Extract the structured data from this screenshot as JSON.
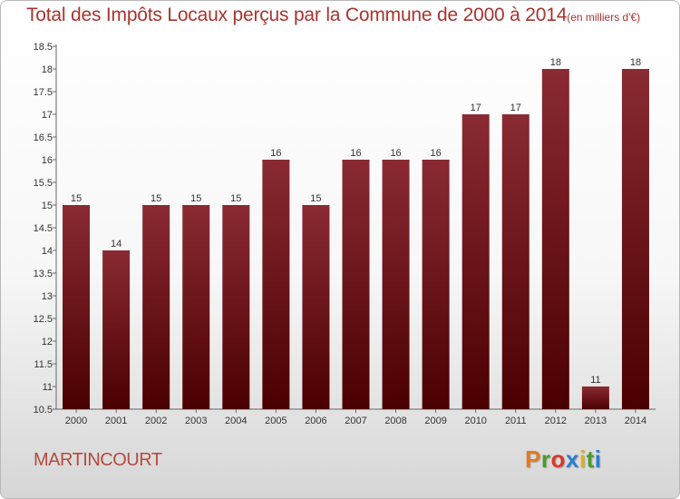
{
  "header": {
    "title": "Total des Impôts Locaux perçus par la Commune de 2000 à 2014",
    "unit": "(en milliers d'€)"
  },
  "footer": {
    "commune": "MARTINCOURT",
    "logo_text": "Proxiti"
  },
  "colors": {
    "bar_top": "#8a2a33",
    "bar_bottom": "#4a0000",
    "title": "#a8342f",
    "logo": [
      "#e07b20",
      "#4a9a2a",
      "#d63a2a",
      "#2a7fd0",
      "#e0b020",
      "#4a9a2a",
      "#2a7fd0"
    ]
  },
  "chart_data": {
    "type": "bar",
    "title": "Total des Impôts Locaux perçus par la Commune de 2000 à 2014",
    "xlabel": "",
    "ylabel": "",
    "categories": [
      "2000",
      "2001",
      "2002",
      "2003",
      "2004",
      "2005",
      "2006",
      "2007",
      "2008",
      "2009",
      "2010",
      "2011",
      "2012",
      "2013",
      "2014"
    ],
    "values": [
      15,
      14,
      15,
      15,
      15,
      16,
      15,
      16,
      16,
      16,
      17,
      17,
      18,
      11,
      18
    ],
    "data_labels": [
      "15",
      "14",
      "15",
      "15",
      "15",
      "16",
      "15",
      "16",
      "16",
      "16",
      "17",
      "17",
      "18",
      "11",
      "18"
    ],
    "ylim": [
      10.5,
      18.5
    ],
    "yticks": [
      "10.5",
      "11",
      "11.5",
      "12",
      "12.5",
      "13",
      "13.5",
      "14",
      "14.5",
      "15",
      "15.5",
      "16",
      "16.5",
      "17",
      "17.5",
      "18",
      "18.5"
    ],
    "grid": false,
    "legend": "none"
  }
}
